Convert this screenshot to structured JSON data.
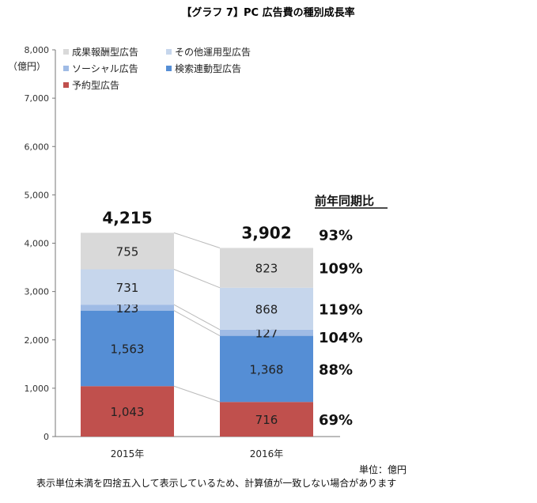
{
  "chart_data": {
    "type": "bar",
    "stacked": true,
    "title": "【グラフ 7】PC 広告費の種別成長率",
    "ylabel": "（億円）",
    "ylim": [
      0,
      8000
    ],
    "yticks": [
      "0",
      "1,000",
      "2,000",
      "3,000",
      "4,000",
      "5,000",
      "6,000",
      "7,000",
      "8,000"
    ],
    "categories": [
      "2015年",
      "2016年"
    ],
    "series": [
      {
        "name": "予約型広告",
        "values": [
          1043,
          716
        ],
        "labels": [
          "1,043",
          "716"
        ],
        "color": "#c0504d",
        "yoy": "69%"
      },
      {
        "name": "検索連動型広告",
        "values": [
          1563,
          1368
        ],
        "labels": [
          "1,563",
          "1,368"
        ],
        "color": "#558ed5",
        "yoy": "88%"
      },
      {
        "name": "ソーシャル広告",
        "values": [
          123,
          127
        ],
        "labels": [
          "123",
          "127"
        ],
        "color": "#9fbbe5",
        "yoy": "104%"
      },
      {
        "name": "その他運用型広告",
        "values": [
          731,
          868
        ],
        "labels": [
          "731",
          "868"
        ],
        "color": "#c6d6ec",
        "yoy": "119%"
      },
      {
        "name": "成果報酬型広告",
        "values": [
          755,
          823
        ],
        "labels": [
          "755",
          "823"
        ],
        "color": "#d9d9d9",
        "yoy": "109%"
      }
    ],
    "legend_order": [
      "成果報酬型広告",
      "その他運用型広告",
      "ソーシャル広告",
      "検索連動型広告",
      "予約型広告"
    ],
    "totals": [
      4215,
      3902
    ],
    "total_labels": [
      "4,215",
      "3,902"
    ],
    "total_yoy": "93%",
    "yoy_header": "前年同期比",
    "legend_position": "top-left",
    "grid": false,
    "unit_note": "単位：億円",
    "footnote": "表示単位未満を四捨五入して表示しているため、計算値が一致しない場合があります"
  }
}
